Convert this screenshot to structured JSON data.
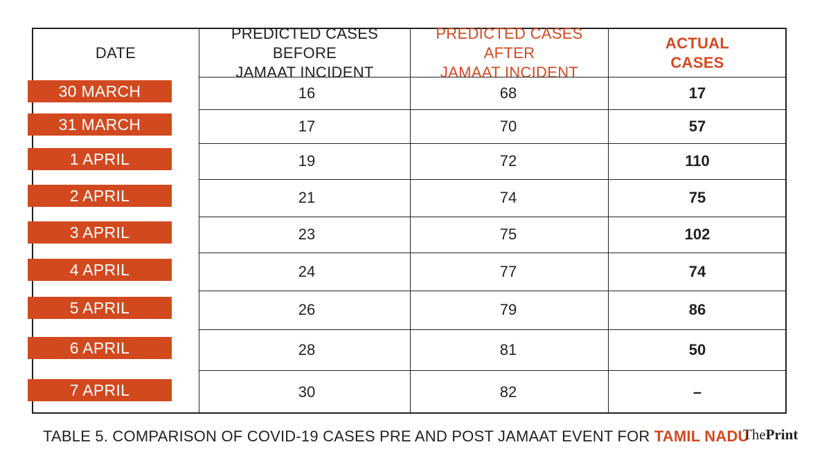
{
  "table": {
    "headers": {
      "date": "DATE",
      "before": [
        "PREDICTED CASES BEFORE",
        "JAMAAT INCIDENT"
      ],
      "after": [
        "PREDICTED CASES AFTER",
        "JAMAAT INCIDENT"
      ],
      "actual": [
        "ACTUAL",
        "CASES"
      ]
    },
    "rows": [
      {
        "date": "30 MARCH",
        "before": "16",
        "after": "68",
        "actual": "17"
      },
      {
        "date": "31 MARCH",
        "before": "17",
        "after": "70",
        "actual": "57"
      },
      {
        "date": "1 APRIL",
        "before": "19",
        "after": "72",
        "actual": "110"
      },
      {
        "date": "2 APRIL",
        "before": "21",
        "after": "74",
        "actual": "75"
      },
      {
        "date": "3 APRIL",
        "before": "23",
        "after": "75",
        "actual": "102"
      },
      {
        "date": "4 APRIL",
        "before": "24",
        "after": "77",
        "actual": "74"
      },
      {
        "date": "5 APRIL",
        "before": "26",
        "after": "79",
        "actual": "86"
      },
      {
        "date": "6 APRIL",
        "before": "28",
        "after": "81",
        "actual": "50"
      },
      {
        "date": "7 APRIL",
        "before": "30",
        "after": "82",
        "actual": "–"
      }
    ]
  },
  "caption": {
    "text": "TABLE 5. COMPARISON OF COVID-19 CASES PRE AND POST JAMAAT EVENT FOR ",
    "state": "TAMIL NADU"
  },
  "logo": {
    "the": "The",
    "print": "Print"
  },
  "colors": {
    "accent": "#d2491f",
    "ink": "#231f20"
  }
}
